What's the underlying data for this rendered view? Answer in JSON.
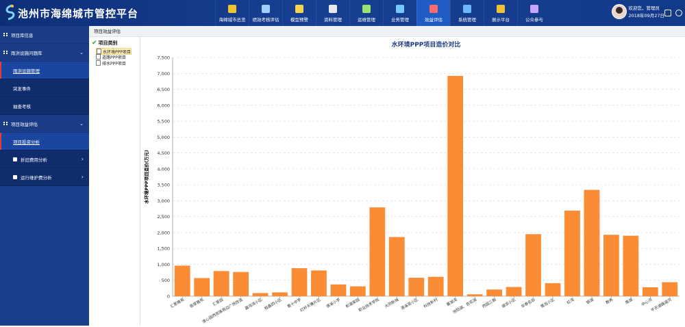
{
  "header": {
    "app_title": "池州市海绵城市管控平台",
    "nav": [
      {
        "label": "海绵城市总览",
        "icon": "home-icon",
        "color": "#f2c230"
      },
      {
        "label": "绩效考核评估",
        "icon": "chart-icon",
        "color": "#9fd0ff"
      },
      {
        "label": "模型预警",
        "icon": "bulb-icon",
        "color": "#f7d44c"
      },
      {
        "label": "资料管理",
        "icon": "folder-icon",
        "color": "#e8e8e8"
      },
      {
        "label": "运维管理",
        "icon": "tools-icon",
        "color": "#9be36f"
      },
      {
        "label": "业务管理",
        "icon": "briefcase-icon",
        "color": "#79c7ff"
      },
      {
        "label": "效益评估",
        "icon": "pen-icon",
        "color": "#ff6b6b"
      },
      {
        "label": "系统管理",
        "icon": "gear-icon",
        "color": "#6fb6ff"
      },
      {
        "label": "展示平台",
        "icon": "grid-icon",
        "color": "#f2c230"
      },
      {
        "label": "公众参与",
        "icon": "people-icon",
        "color": "#c8a6ff"
      }
    ],
    "active_nav": "效益评估",
    "user": {
      "greeting": "欢迎您，管理员",
      "date": "2018年09月27日"
    }
  },
  "sidebar": {
    "sections": [
      {
        "label": "项目库信息",
        "items": []
      },
      {
        "label": "雨洪设施问题库",
        "items": [
          {
            "label": "雨洪设施管理",
            "active": true
          },
          {
            "label": "突发事件",
            "active": false
          },
          {
            "label": "抽查考核",
            "active": false
          }
        ]
      },
      {
        "label": "项目效益评估",
        "items": [
          {
            "label": "项目投资分析",
            "active": true
          },
          {
            "label": "折旧费用分析",
            "active": false
          },
          {
            "label": "运行维护费分析",
            "active": false
          }
        ]
      }
    ]
  },
  "breadcrumb": "项目效益评估",
  "tree": {
    "root": "项目类别",
    "items": [
      "水环境PPP项目",
      "道路PPP项目",
      "排水PPP项目"
    ],
    "selected": "水环境PPP项目"
  },
  "chart_data": {
    "type": "bar",
    "title": "水环境PPP项目造价对比",
    "ylabel": "水环境PPP项目造价(万元)",
    "xlabel": "",
    "ylim": [
      0,
      7500
    ],
    "yticks": [
      0,
      500,
      1000,
      1500,
      2000,
      2500,
      3000,
      3500,
      4000,
      4500,
      5000,
      5500,
      6000,
      6500,
      7000,
      7500
    ],
    "grid": true,
    "bar_color": "#fb8c36",
    "categories": [
      "汇景雅苑",
      "翡翠雅苑",
      "汇景园",
      "清心园西苑等周边广场改造",
      "嘉鸿湾小区",
      "桂鑫四小区",
      "第十中学",
      "红岭天廉片区",
      "清溪小学",
      "和谐家园",
      "职业技术学院",
      "大同新城",
      "清溪苑小区",
      "科技新村",
      "塞湖湾",
      "池阳湖、杏花湖",
      "西园三期",
      "湖滨小区",
      "华泰名邸",
      "鹭岛小区",
      "虹湾",
      "银湖",
      "教养",
      "南湖",
      "中心河",
      "平天湖路道河"
    ],
    "values": [
      960,
      570,
      790,
      760,
      100,
      120,
      880,
      810,
      370,
      310,
      2790,
      1860,
      580,
      610,
      6920,
      60,
      210,
      290,
      1950,
      410,
      2690,
      3340,
      1930,
      1900,
      280,
      440
    ]
  }
}
